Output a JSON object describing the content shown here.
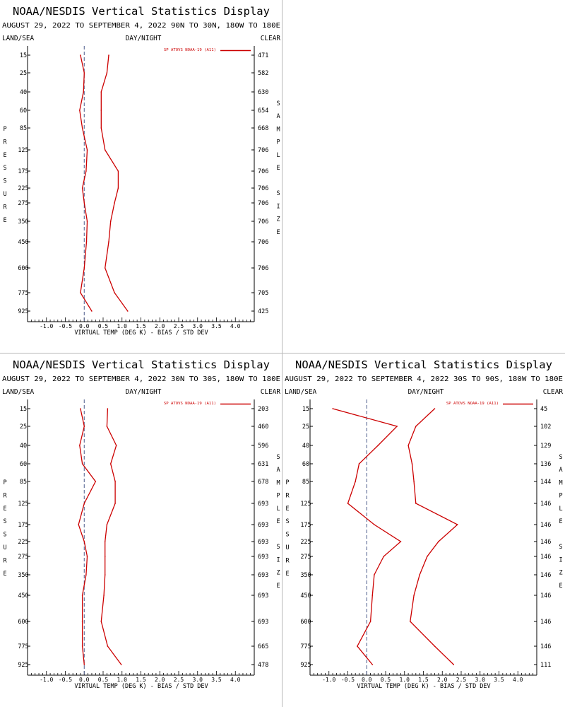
{
  "page": {
    "title": "NOAA/NESDIS Vertical Statistics Display",
    "left_header": "LAND/SEA",
    "center_header": "DAY/NIGHT",
    "right_header": "CLEAR",
    "pressure_label": "PRESSURE",
    "sample_size_label": "SAMPLE SIZE",
    "x_axis_label": "VIRTUAL TEMP (DEG K) - BIAS / STD DEV",
    "line_color": "#cc0000",
    "zero_line_color": "#4a5a8a"
  },
  "chart_data": [
    {
      "type": "line",
      "subtitle": "AUGUST 29, 2022 TO SEPTEMBER 4, 2022 90N TO 30N, 180W TO 180E",
      "legend": "SP ATOVS NOAA-19 (A11)",
      "xlim": [
        -1.5,
        4.5
      ],
      "x_ticks": [
        "-1.0",
        "-0.5",
        "0.0",
        "0.5",
        "1.0",
        "1.5",
        "2.0",
        "2.5",
        "3.0",
        "3.5",
        "4.0"
      ],
      "pressure_levels": [
        "15",
        "25",
        "40",
        "60",
        "85",
        "125",
        "175",
        "225",
        "275",
        "350",
        "450",
        "600",
        "775",
        "925"
      ],
      "sample_size": [
        "471",
        "582",
        "630",
        "654",
        "668",
        "706",
        "706",
        "706",
        "706",
        "706",
        "706",
        "706",
        "705",
        "425"
      ],
      "series": [
        {
          "name": "bias",
          "values": [
            -0.1,
            0.0,
            -0.02,
            -0.12,
            -0.05,
            0.08,
            0.05,
            -0.05,
            0.0,
            0.08,
            0.06,
            0.0,
            -0.1,
            0.2
          ]
        },
        {
          "name": "std_dev",
          "values": [
            0.65,
            0.6,
            0.45,
            0.45,
            0.45,
            0.55,
            0.9,
            0.9,
            0.8,
            0.7,
            0.65,
            0.55,
            0.8,
            1.15
          ]
        }
      ]
    },
    {
      "type": "line",
      "subtitle": "AUGUST 29, 2022 TO SEPTEMBER 4, 2022 30N TO 30S, 180W TO 180E",
      "legend": "SP ATOVS NOAA-19 (A11)",
      "xlim": [
        -1.5,
        4.5
      ],
      "x_ticks": [
        "-1.0",
        "-0.5",
        "0.0",
        "0.5",
        "1.0",
        "1.5",
        "2.0",
        "2.5",
        "3.0",
        "3.5",
        "4.0"
      ],
      "pressure_levels": [
        "15",
        "25",
        "40",
        "60",
        "85",
        "125",
        "175",
        "225",
        "275",
        "350",
        "450",
        "600",
        "775",
        "925"
      ],
      "sample_size": [
        "203",
        "460",
        "596",
        "631",
        "678",
        "693",
        "693",
        "693",
        "693",
        "693",
        "693",
        "693",
        "665",
        "478"
      ],
      "series": [
        {
          "name": "bias",
          "values": [
            -0.1,
            0.0,
            -0.12,
            -0.05,
            0.3,
            0.0,
            -0.15,
            0.0,
            0.08,
            0.05,
            -0.05,
            -0.05,
            -0.05,
            0.0
          ]
        },
        {
          "name": "std_dev",
          "values": [
            0.62,
            0.6,
            0.85,
            0.7,
            0.82,
            0.82,
            0.6,
            0.55,
            0.55,
            0.55,
            0.52,
            0.45,
            0.62,
            0.98
          ]
        }
      ]
    },
    {
      "type": "line",
      "subtitle": "AUGUST 29, 2022 TO SEPTEMBER 4, 2022 30S TO 90S, 180W TO 180E",
      "legend": "SP ATOVS NOAA-19 (A11)",
      "xlim": [
        -1.5,
        4.5
      ],
      "x_ticks": [
        "-1.0",
        "-0.5",
        "0.0",
        "0.5",
        "1.0",
        "1.5",
        "2.0",
        "2.5",
        "3.0",
        "3.5",
        "4.0"
      ],
      "pressure_levels": [
        "15",
        "25",
        "40",
        "60",
        "85",
        "125",
        "175",
        "225",
        "275",
        "350",
        "450",
        "600",
        "775",
        "925"
      ],
      "sample_size": [
        "45",
        "102",
        "129",
        "136",
        "144",
        "146",
        "146",
        "146",
        "146",
        "146",
        "146",
        "146",
        "146",
        "111"
      ],
      "series": [
        {
          "name": "bias",
          "values": [
            -0.9,
            0.8,
            0.3,
            -0.2,
            -0.3,
            -0.5,
            0.2,
            0.9,
            0.45,
            0.2,
            0.15,
            0.1,
            -0.25,
            0.15
          ]
        },
        {
          "name": "std_dev",
          "values": [
            1.8,
            1.3,
            1.1,
            1.2,
            1.25,
            1.3,
            2.4,
            1.9,
            1.6,
            1.4,
            1.25,
            1.15,
            1.8,
            2.3
          ]
        }
      ]
    }
  ]
}
